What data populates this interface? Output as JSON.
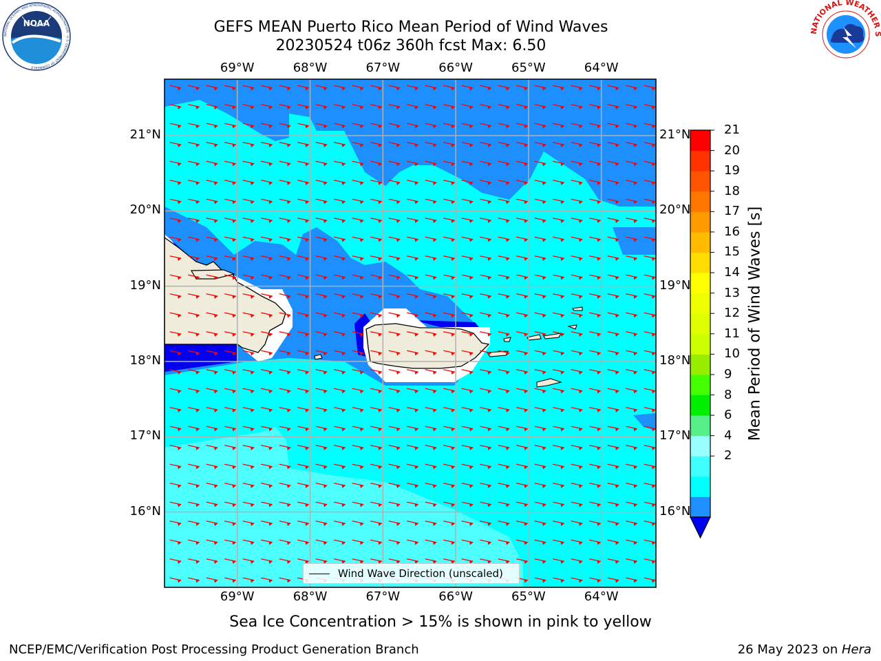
{
  "title": {
    "line1": "GEFS MEAN Puerto Rico Mean Period of Wind Waves",
    "line2": "20230524 t06z 360h fcst   Max: 6.50"
  },
  "axes": {
    "lon_labels": [
      "69°W",
      "68°W",
      "67°W",
      "66°W",
      "65°W",
      "64°W"
    ],
    "lat_labels": [
      "21°N",
      "20°N",
      "19°N",
      "18°N",
      "17°N",
      "16°N"
    ]
  },
  "map": {
    "lon_range": [
      -70.0,
      -63.25
    ],
    "lat_range": [
      15.0,
      21.75
    ],
    "gridlines": true,
    "arrow_color": "#ff0000",
    "land_color": "#efecdc",
    "arrow_direction": "toward west-southwest"
  },
  "colorbar": {
    "ticks": [
      "21",
      "20",
      "19",
      "18",
      "17",
      "16",
      "15",
      "14",
      "13",
      "12",
      "11",
      "10",
      "9",
      "8",
      "6",
      "4",
      "2"
    ],
    "label": "Mean Period of Wind Waves [s]",
    "colors": [
      "#0000ee",
      "#1e90ff",
      "#00ffff",
      "#40ffff",
      "#99ffff",
      "#55ee88",
      "#00ee00",
      "#44ff00",
      "#99ee00",
      "#ccff00",
      "#ddff00",
      "#eeff00",
      "#ffff00",
      "#ffdd00",
      "#ffbb00",
      "#ff9900",
      "#ff7700",
      "#ff5500",
      "#ff3300",
      "#ff0000"
    ]
  },
  "legend": {
    "label": "Wind Wave Direction (unscaled)"
  },
  "note": "Sea Ice Concentration > 15% is shown in pink to yellow",
  "footer": {
    "left": "NCEP/EMC/Verification Post Processing Product Generation Branch",
    "right_prefix": "26 May 2023 on ",
    "right_host": "Hera"
  },
  "logos": {
    "left": "NOAA",
    "left_ring": "NATIONAL OCEANIC AND ATMOSPHERIC ADMINISTRATION · U.S. DEPARTMENT OF COMMERCE",
    "right_ring": "NATIONAL WEATHER SERVICE"
  }
}
